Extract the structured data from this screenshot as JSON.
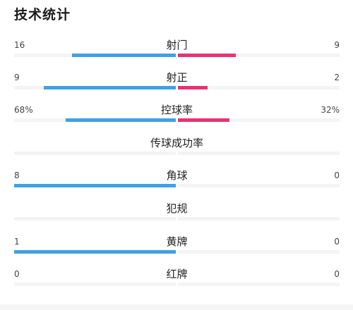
{
  "header": {
    "title": "技术统计"
  },
  "colors": {
    "home_bar": "#3fa0e8",
    "away_bar": "#e8336e",
    "track": "#f3f4f6"
  },
  "stats": [
    {
      "label": "射门",
      "left": "16",
      "right": "9",
      "left_share": 0.64,
      "right_share": 0.36
    },
    {
      "label": "射正",
      "left": "9",
      "right": "2",
      "left_share": 0.818,
      "right_share": 0.182
    },
    {
      "label": "控球率",
      "left": "68%",
      "right": "32%",
      "left_share": 0.68,
      "right_share": 0.32
    },
    {
      "label": "传球成功率",
      "left": "",
      "right": "",
      "left_share": 0,
      "right_share": 0
    },
    {
      "label": "角球",
      "left": "8",
      "right": "0",
      "left_share": 1,
      "right_share": 0
    },
    {
      "label": "犯规",
      "left": "",
      "right": "",
      "left_share": 0,
      "right_share": 0
    },
    {
      "label": "黄牌",
      "left": "1",
      "right": "0",
      "left_share": 1,
      "right_share": 0
    },
    {
      "label": "红牌",
      "left": "0",
      "right": "0",
      "left_share": 0,
      "right_share": 0
    }
  ]
}
